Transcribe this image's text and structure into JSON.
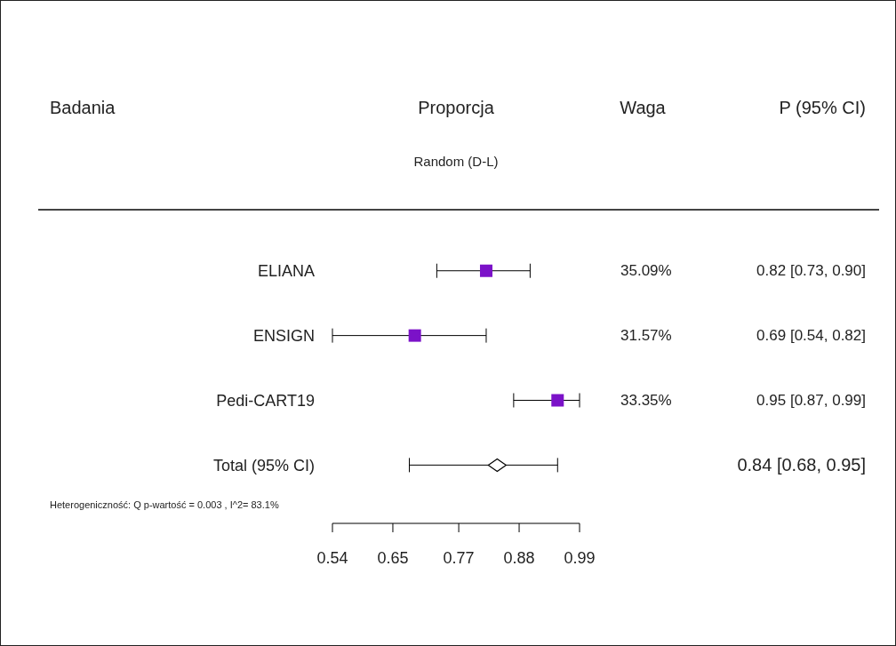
{
  "chart_data": {
    "type": "scatter",
    "title": "Proporcja",
    "subtitle": "Random (D-L)",
    "orientation": "horizontal",
    "categories": [
      "ELIANA",
      "ENSIGN",
      "Pedi-CART19",
      "Total (95% CI)"
    ],
    "series": [
      {
        "color": "#7b12c8",
        "marker": "square",
        "values": [
          0.82,
          0.69,
          0.95,
          null
        ],
        "errors": [
          [
            0.73,
            0.9
          ],
          [
            0.54,
            0.82
          ],
          [
            0.87,
            0.99
          ],
          null
        ],
        "value_labels": [
          "0.82 [0.73, 0.90]",
          "0.69 [0.54, 0.82]",
          "0.95 [0.87, 0.99]",
          null
        ]
      },
      {
        "color": "#000000",
        "marker": "diamond",
        "values": [
          null,
          null,
          null,
          0.84
        ],
        "errors": [
          null,
          null,
          null,
          [
            0.68,
            0.95
          ]
        ]
      }
    ],
    "xlim": [
      0.54,
      0.99
    ],
    "xticks": [
      0.54,
      0.65,
      0.77,
      0.88,
      0.99
    ],
    "annotations": [
      "Badania",
      "Waga",
      "P (95% CI)",
      "35.09%",
      "31.57%",
      "33.35%",
      "0.84 [0.68, 0.95]",
      "Heterogeniczność: Q p-wartość = 0.003 , I^2= 83.1%"
    ]
  }
}
